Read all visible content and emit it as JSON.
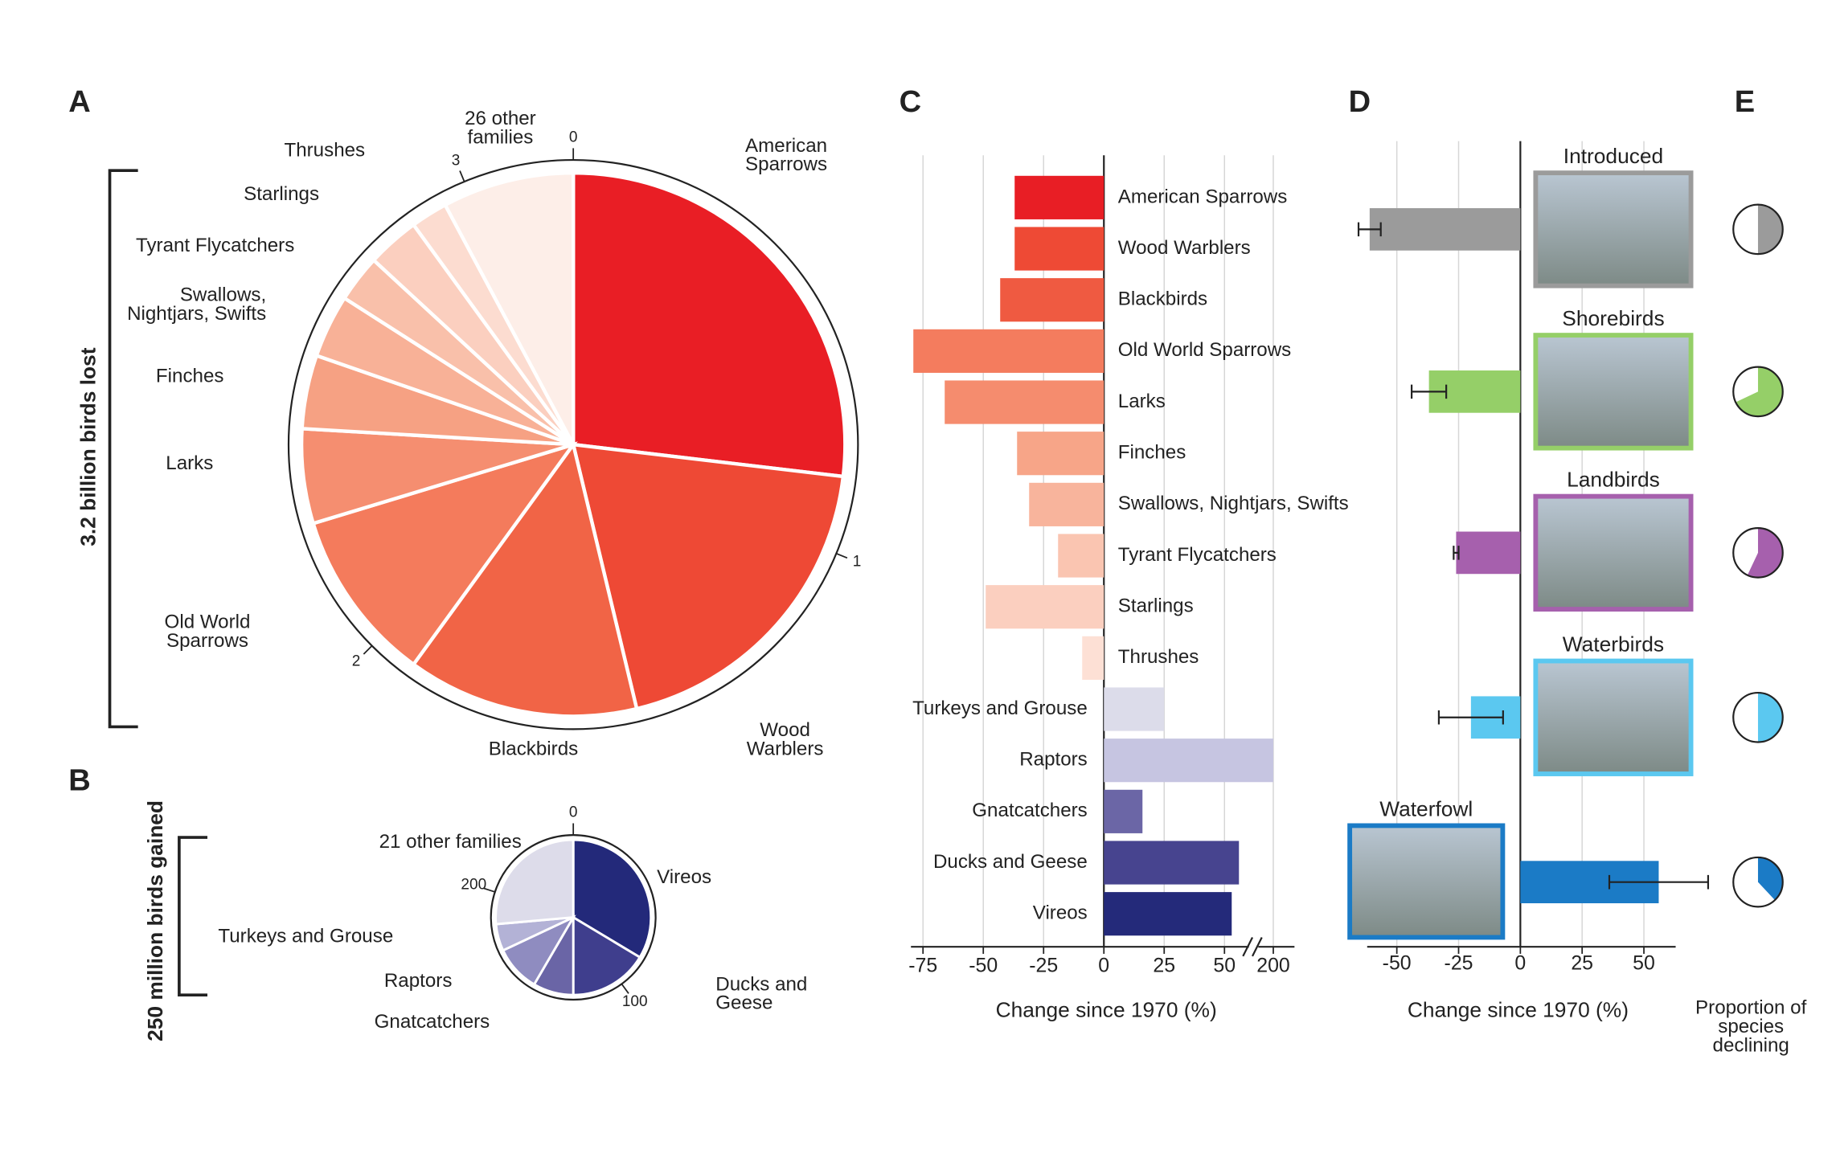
{
  "chart_data": [
    {
      "type": "pie",
      "label": "A",
      "title": "3.2 billion birds lost",
      "categories": [
        "American Sparrows",
        "Wood Warblers",
        "Blackbirds",
        "Old World Sparrows",
        "Larks",
        "Finches",
        "Swallows, Nightjars, Swifts",
        "Tyrant Flycatchers",
        "Starlings",
        "Thrushes",
        "26 other families"
      ],
      "values": [
        0.86,
        0.62,
        0.44,
        0.33,
        0.18,
        0.14,
        0.12,
        0.09,
        0.1,
        0.07,
        0.25
      ],
      "colors": [
        "#e91e25",
        "#ee4935",
        "#f16446",
        "#f47b5c",
        "#f58e70",
        "#f6a183",
        "#f8b197",
        "#f9c0aa",
        "#fbcfbf",
        "#fcdcd0",
        "#fdeee8"
      ],
      "ticks": [
        0,
        1,
        2,
        3
      ]
    },
    {
      "type": "pie",
      "label": "B",
      "title": "250 million birds gained",
      "categories": [
        "Vireos",
        "Ducks and Geese",
        "Gnatcatchers",
        "Raptors",
        "Turkeys and Grouse",
        "21 other families"
      ],
      "values": [
        84,
        41,
        21,
        24,
        14,
        66
      ],
      "colors": [
        "#23297a",
        "#3f3e8d",
        "#6a65a6",
        "#8f8cc0",
        "#b3b2d6",
        "#dddcea"
      ],
      "ticks": [
        0,
        100,
        200
      ]
    },
    {
      "type": "hbar",
      "label": "C",
      "xlabel": "Change since 1970 (%)",
      "categories": [
        "American Sparrows",
        "Wood Warblers",
        "Blackbirds",
        "Old World Sparrows",
        "Larks",
        "Finches",
        "Swallows, Nightjars, Swifts",
        "Tyrant Flycatchers",
        "Starlings",
        "Thrushes",
        "Turkeys and Grouse",
        "Raptors",
        "Gnatcatchers",
        "Ducks and Geese",
        "Vireos"
      ],
      "values": [
        -37,
        -37,
        -43,
        -79,
        -66,
        -36,
        -31,
        -19,
        -49,
        -9,
        25,
        200,
        16,
        56,
        53
      ],
      "colors": [
        "#e81e25",
        "#ee4a35",
        "#ef5a41",
        "#f47c5e",
        "#f58c6e",
        "#f7a588",
        "#f8b49c",
        "#fac5b1",
        "#fbcfbf",
        "#fde0d5",
        "#dcdcea",
        "#c6c5e1",
        "#6b66a6",
        "#47448f",
        "#242a7a"
      ],
      "xlim": [
        -80,
        200
      ],
      "xticks": [
        -75,
        -50,
        -25,
        0,
        25,
        50,
        200
      ],
      "axis_break": true,
      "grid": true
    },
    {
      "type": "hbar_error",
      "label": "D",
      "xlabel": "Change since 1970 (%)",
      "categories": [
        "Introduced",
        "Shorebirds",
        "Landbirds",
        "Waterbirds",
        "Waterfowl"
      ],
      "values": [
        -61,
        -37,
        -26,
        -20,
        56
      ],
      "errors": [
        4.5,
        7,
        1,
        13,
        20
      ],
      "colors": [
        "#9b9b9b",
        "#95cf68",
        "#a660ad",
        "#5bc8f0",
        "#1b7bc6"
      ],
      "xlim": [
        -62,
        60
      ],
      "xticks": [
        -50,
        -25,
        0,
        25,
        50
      ],
      "grid": true
    },
    {
      "type": "mini_pies",
      "label": "E",
      "title": "Proportion of species declining",
      "values": [
        50,
        68,
        57,
        50,
        38
      ],
      "colors": [
        "#9b9b9b",
        "#95cf68",
        "#a660ad",
        "#5bc8f0",
        "#1b7bc6"
      ]
    }
  ]
}
